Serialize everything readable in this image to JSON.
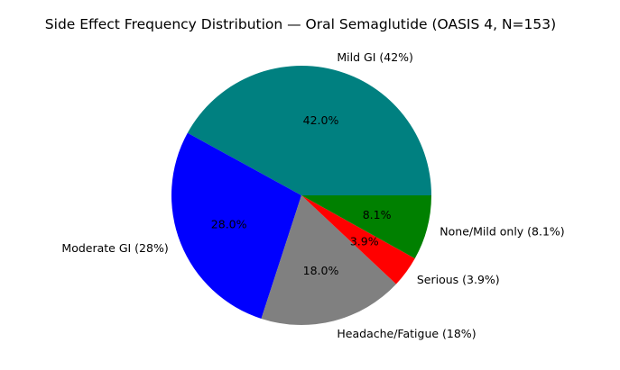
{
  "chart_data": {
    "type": "pie",
    "title": "Side Effect Frequency Distribution — Oral Semaglutide (OASIS 4, N=153)",
    "labels": [
      "Mild GI (42%)",
      "Moderate GI (28%)",
      "Headache/Fatigue (18%)",
      "Serious (3.9%)",
      "None/Mild only (8.1%)"
    ],
    "values": [
      42,
      28,
      18,
      3.9,
      8.1
    ],
    "percent_labels": [
      "42.0%",
      "28.0%",
      "18.0%",
      "3.9%",
      "8.1%"
    ],
    "colors": [
      "#008080",
      "#0000ff",
      "#808080",
      "#ff0000",
      "#008000"
    ],
    "start_angle_deg": 0,
    "direction": "counterclockwise"
  }
}
